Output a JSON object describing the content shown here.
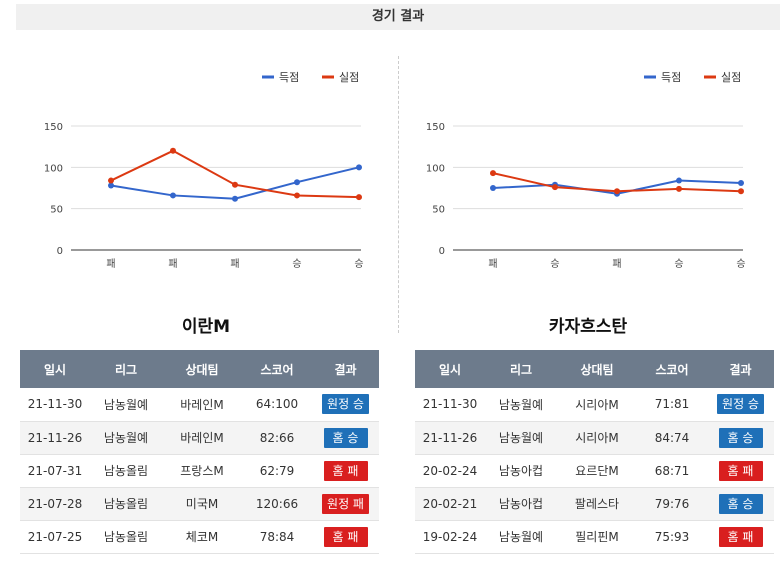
{
  "page": {
    "title": "경기 결과"
  },
  "colors": {
    "scored": "#3366cc",
    "conceded": "#dc3912",
    "win": "#1f70b8",
    "loss": "#d91f1f"
  },
  "chart_data": [
    {
      "type": "line",
      "categories": [
        "패",
        "패",
        "패",
        "승",
        "승"
      ],
      "series": [
        {
          "name": "득점",
          "values": [
            78,
            66,
            62,
            82,
            100
          ]
        },
        {
          "name": "실점",
          "values": [
            84,
            120,
            79,
            66,
            64
          ]
        }
      ],
      "yticks": [
        0,
        50,
        100,
        150
      ],
      "ylim": [
        0,
        150
      ],
      "legend": "top-right",
      "grid": true
    },
    {
      "type": "line",
      "categories": [
        "패",
        "승",
        "패",
        "승",
        "승"
      ],
      "series": [
        {
          "name": "득점",
          "values": [
            75,
            79,
            68,
            84,
            81
          ]
        },
        {
          "name": "실점",
          "values": [
            93,
            76,
            71,
            74,
            71
          ]
        }
      ],
      "yticks": [
        0,
        50,
        100,
        150
      ],
      "ylim": [
        0,
        150
      ],
      "legend": "top-right",
      "grid": true
    }
  ],
  "teams": [
    {
      "name": "이란M",
      "headers": [
        "일시",
        "리그",
        "상대팀",
        "스코어",
        "결과"
      ],
      "rows": [
        {
          "date": "21-11-30",
          "league": "남농월예",
          "opponent": "바레인M",
          "score": "64:100",
          "result": "원정 승",
          "type": "win"
        },
        {
          "date": "21-11-26",
          "league": "남농월예",
          "opponent": "바레인M",
          "score": "82:66",
          "result": "홈 승",
          "type": "win"
        },
        {
          "date": "21-07-31",
          "league": "남농올림",
          "opponent": "프랑스M",
          "score": "62:79",
          "result": "홈 패",
          "type": "loss"
        },
        {
          "date": "21-07-28",
          "league": "남농올림",
          "opponent": "미국M",
          "score": "120:66",
          "result": "원정 패",
          "type": "loss"
        },
        {
          "date": "21-07-25",
          "league": "남농올림",
          "opponent": "체코M",
          "score": "78:84",
          "result": "홈 패",
          "type": "loss"
        }
      ]
    },
    {
      "name": "카자흐스탄",
      "headers": [
        "일시",
        "리그",
        "상대팀",
        "스코어",
        "결과"
      ],
      "rows": [
        {
          "date": "21-11-30",
          "league": "남농월예",
          "opponent": "시리아M",
          "score": "71:81",
          "result": "원정 승",
          "type": "win"
        },
        {
          "date": "21-11-26",
          "league": "남농월예",
          "opponent": "시리아M",
          "score": "84:74",
          "result": "홈 승",
          "type": "win"
        },
        {
          "date": "20-02-24",
          "league": "남농아컵",
          "opponent": "요르단M",
          "score": "68:71",
          "result": "홈 패",
          "type": "loss"
        },
        {
          "date": "20-02-21",
          "league": "남농아컵",
          "opponent": "팔레스타",
          "score": "79:76",
          "result": "홈 승",
          "type": "win"
        },
        {
          "date": "19-02-24",
          "league": "남농월예",
          "opponent": "필리핀M",
          "score": "75:93",
          "result": "홈 패",
          "type": "loss"
        }
      ]
    }
  ]
}
